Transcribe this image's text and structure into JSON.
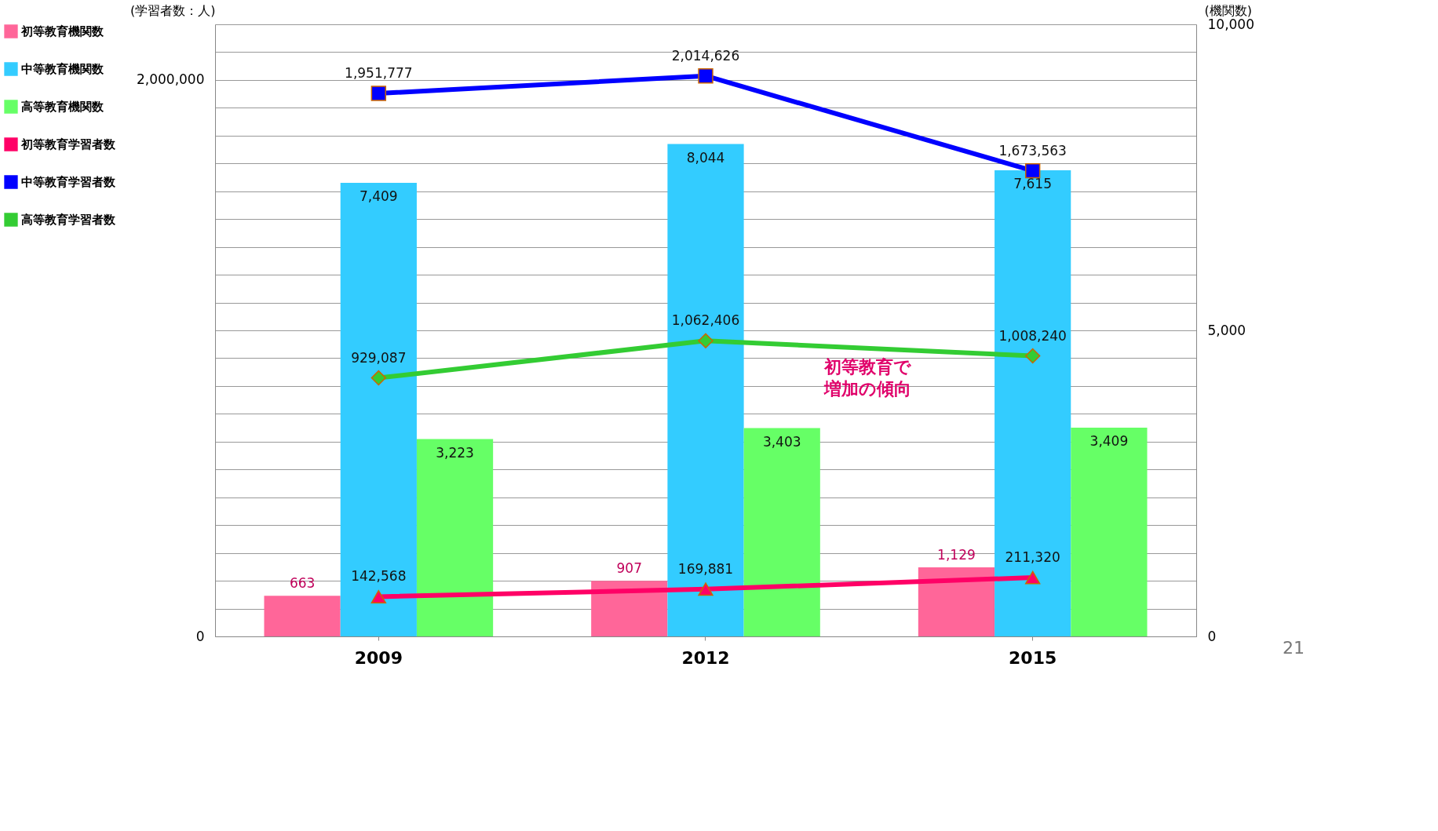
{
  "chart_data": {
    "type": "bar",
    "categories": [
      "2009",
      "2012",
      "2015"
    ],
    "ylabel": "(学習者数：人)",
    "y2label": "(機関数)",
    "ylim": [
      0,
      2200000
    ],
    "yticks": [
      0,
      {
        "value": 100000,
        "label": null
      },
      {
        "value": 200000,
        "label": null
      },
      {
        "value": 300000,
        "label": null
      },
      {
        "value": 400000,
        "label": null
      },
      {
        "value": 500000,
        "label": null
      },
      {
        "value": 600000,
        "label": null
      },
      {
        "value": 700000,
        "label": null
      },
      {
        "value": 800000,
        "label": null
      },
      {
        "value": 900000,
        "label": null
      },
      {
        "value": 1000000,
        "label": null
      },
      {
        "value": 1100000,
        "label": null
      },
      {
        "value": 1200000,
        "label": null
      },
      {
        "value": 1300000,
        "label": null
      },
      {
        "value": 1400000,
        "label": null
      },
      {
        "value": 1500000,
        "label": null
      },
      {
        "value": 1600000,
        "label": null
      },
      {
        "value": 1700000,
        "label": null
      },
      {
        "value": 1800000,
        "label": null
      },
      {
        "value": 1900000,
        "label": null
      },
      {
        "value": 2000000,
        "label": "2,000,000"
      },
      {
        "value": 2100000,
        "label": null
      },
      {
        "value": 2200000,
        "label": null
      }
    ],
    "y2lim": [
      0,
      10000
    ],
    "y2ticks": [
      0,
      {
        "value": 5000,
        "label": "5,000"
      },
      {
        "value": 10000,
        "label": "10,000"
      }
    ],
    "grid": "y",
    "legend": "left",
    "series": [
      {
        "name": "初等教育機関数",
        "axis": "y2",
        "color": "#ff6699",
        "values": [
          663,
          907,
          1129
        ],
        "value_labels": [
          "663",
          "907",
          "1,129"
        ]
      },
      {
        "name": "中等教育機関数",
        "axis": "y2",
        "color": "#33ccff",
        "values": [
          7409,
          8044,
          7615
        ],
        "value_labels": [
          "7,409",
          "8,044",
          "7,615"
        ]
      },
      {
        "name": "高等教育機関数",
        "axis": "y2",
        "color": "#66ff66",
        "values": [
          3223,
          3403,
          3409
        ],
        "value_labels": [
          "3,223",
          "3,403",
          "3,409"
        ]
      },
      {
        "name": "初等教育学習者数",
        "type": "line",
        "color": "#ff0066",
        "marker": "triangle",
        "values": [
          142568,
          169881,
          211320
        ],
        "value_labels": [
          "142,568",
          "169,881",
          "211,320"
        ]
      },
      {
        "name": "中等教育学習者数",
        "type": "line",
        "color": "#0000ff",
        "marker": "square",
        "values": [
          1951777,
          2014626,
          1673563
        ],
        "value_labels": [
          "1,951,777",
          "2,014,626",
          "1,673,563"
        ]
      },
      {
        "name": "高等教育学習者数",
        "type": "line",
        "color": "#33cc33",
        "marker": "diamond",
        "values": [
          929087,
          1062406,
          1008240
        ],
        "value_labels": [
          "929,087",
          "1,062,406",
          "1,008,240"
        ]
      }
    ],
    "annotations": [
      "初等教育で",
      "増加の傾向",
      "21"
    ]
  }
}
